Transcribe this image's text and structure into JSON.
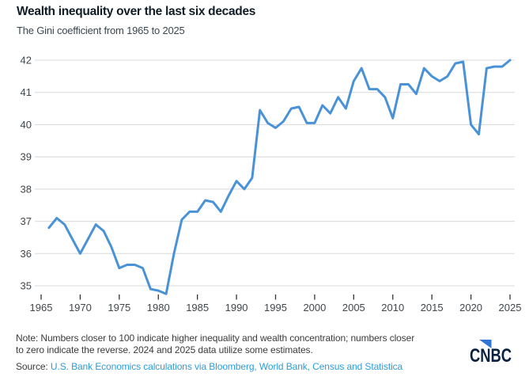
{
  "header": {
    "title": "Wealth inequality over the last six decades",
    "subtitle": "The Gini coefficient from 1965 to 2025"
  },
  "footer": {
    "note_line1": "Note: Numbers closer to 100 indicate higher inequality and wealth concentration; numbers closer",
    "note_line2": "to zero indicate the reverse. 2024 and 2025 data utilize some estimates.",
    "source_label": "Source:",
    "source_link": "U.S. Bank Economics calculations via Bloomberg, World Bank, Census and Statistica",
    "logo_text": "CNBC"
  },
  "colors": {
    "line": "#4a92d8",
    "grid": "#d8d8d8",
    "axis_label": "#41474c",
    "tick": "#333333",
    "title": "#101d26",
    "subtitle": "#3b4750",
    "note": "#3b3b3b",
    "link": "#2d9cd8",
    "logo_navy": "#0a2240",
    "logo_blue": "#3277d6"
  },
  "chart_data": {
    "type": "line",
    "title": "Wealth inequality over the last six decades",
    "subtitle": "The Gini coefficient from 1965 to 2025",
    "xlabel": "",
    "ylabel": "",
    "grid": "horizontal",
    "legend": "none",
    "x_axis": {
      "ticks": [
        1965,
        1970,
        1975,
        1980,
        1985,
        1990,
        1995,
        2000,
        2005,
        2010,
        2015,
        2020,
        2025
      ],
      "range": [
        1965,
        2025
      ]
    },
    "y_axis": {
      "ticks": [
        35,
        36,
        37,
        38,
        39,
        40,
        41,
        42
      ],
      "range": [
        35,
        42
      ]
    },
    "series": [
      {
        "name": "Gini coefficient",
        "x": [
          1966,
          1967,
          1968,
          1969,
          1970,
          1971,
          1972,
          1973,
          1974,
          1975,
          1976,
          1977,
          1978,
          1979,
          1980,
          1981,
          1982,
          1983,
          1984,
          1985,
          1986,
          1987,
          1988,
          1989,
          1990,
          1991,
          1992,
          1993,
          1994,
          1995,
          1996,
          1997,
          1998,
          1999,
          2000,
          2001,
          2002,
          2003,
          2004,
          2005,
          2006,
          2007,
          2008,
          2009,
          2010,
          2011,
          2012,
          2013,
          2014,
          2015,
          2016,
          2017,
          2018,
          2019,
          2020,
          2021,
          2022,
          2023,
          2024,
          2025
        ],
        "y": [
          36.8,
          37.1,
          36.9,
          36.45,
          36.0,
          36.45,
          36.9,
          36.7,
          36.2,
          35.55,
          35.65,
          35.65,
          35.55,
          34.9,
          34.85,
          34.75,
          36.0,
          37.05,
          37.3,
          37.3,
          37.65,
          37.6,
          37.3,
          37.8,
          38.25,
          38.0,
          38.35,
          40.45,
          40.05,
          39.9,
          40.1,
          40.5,
          40.55,
          40.05,
          40.05,
          40.6,
          40.35,
          40.85,
          40.5,
          41.35,
          41.75,
          41.1,
          41.1,
          40.85,
          40.2,
          41.25,
          41.25,
          40.95,
          41.75,
          41.5,
          41.35,
          41.5,
          41.9,
          41.95,
          40.0,
          39.7,
          41.75,
          41.8,
          41.8,
          42.0
        ]
      }
    ]
  }
}
